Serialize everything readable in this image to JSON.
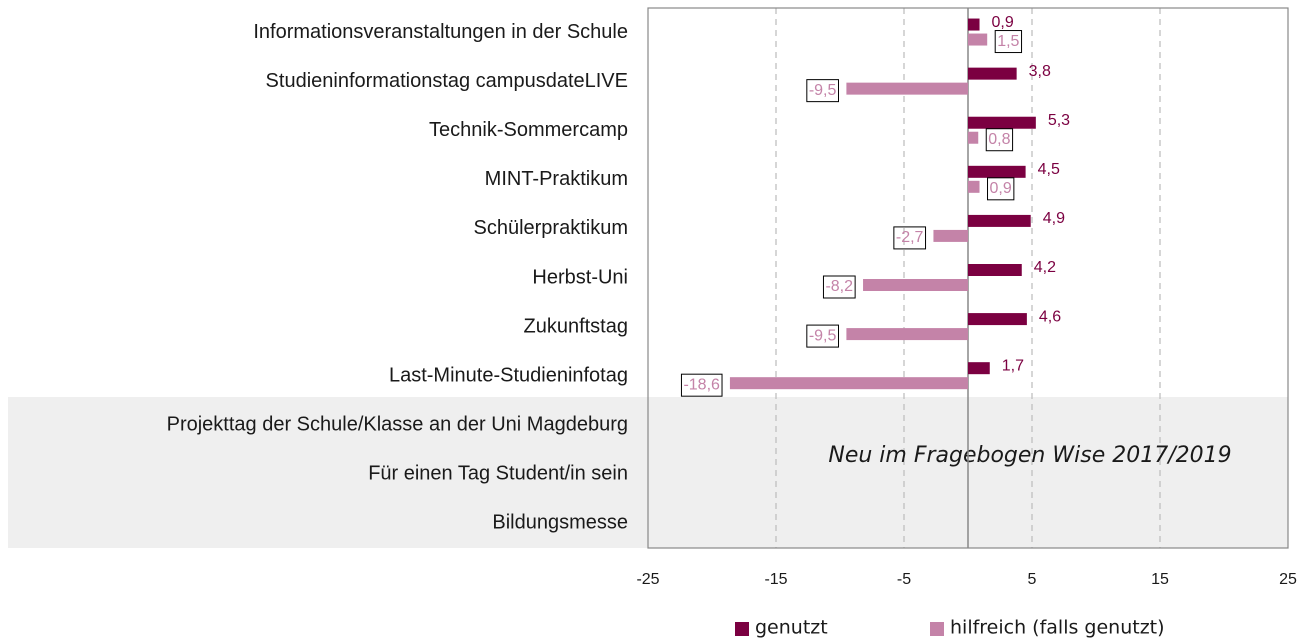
{
  "chart_data": {
    "type": "hbar",
    "categories": [
      "Informationsveranstaltungen in der Schule",
      "Studieninformationstag campusdateLIVE",
      "Technik-Sommercamp",
      "MINT-Praktikum",
      "Schülerpraktikum",
      "Herbst-Uni",
      "Zukunftstag",
      "Last-Minute-Studieninfotag",
      "Projekttag der Schule/Klasse an der Uni Magdeburg",
      "Für einen Tag Student/in sein",
      "Bildungsmesse"
    ],
    "series": [
      {
        "name": "genutzt",
        "color": "#7b0041",
        "values": [
          0.9,
          3.8,
          5.3,
          4.5,
          4.9,
          4.2,
          4.6,
          1.7,
          null,
          null,
          null
        ],
        "value_labels": [
          "0,9",
          "3,8",
          "5,3",
          "4,5",
          "4,9",
          "4,2",
          "4,6",
          "1,7",
          null,
          null,
          null
        ]
      },
      {
        "name": "hilfreich (falls genutzt)",
        "color": "#c483a8",
        "values": [
          1.5,
          -9.5,
          0.8,
          0.9,
          -2.7,
          -8.2,
          -9.5,
          -18.6,
          null,
          null,
          null
        ],
        "value_labels": [
          "1,5",
          "-9,5",
          "0,8",
          "0,9",
          "-2,7",
          "-8,2",
          "-9,5",
          "-18,6",
          null,
          null,
          null
        ]
      }
    ],
    "annotation": "Neu im Fragebogen Wise 2017/2019",
    "xlim": [
      -25,
      25
    ],
    "xticks": [
      -25,
      -15,
      -5,
      5,
      15,
      25
    ],
    "grid": true,
    "legend": "bottom"
  }
}
